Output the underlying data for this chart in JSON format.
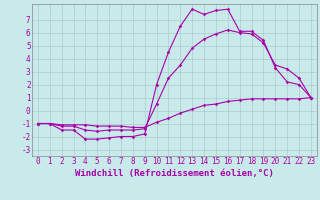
{
  "xlabel": "Windchill (Refroidissement éolien,°C)",
  "bg_color": "#c8eaea",
  "line_color": "#aa00aa",
  "grid_color": "#aacccc",
  "xlim": [
    -0.5,
    23.5
  ],
  "ylim": [
    -3.5,
    8.2
  ],
  "xticks": [
    0,
    1,
    2,
    3,
    4,
    5,
    6,
    7,
    8,
    9,
    10,
    11,
    12,
    13,
    14,
    15,
    16,
    17,
    18,
    19,
    20,
    21,
    22,
    23
  ],
  "yticks": [
    -3,
    -2,
    -1,
    0,
    1,
    2,
    3,
    4,
    5,
    6,
    7
  ],
  "line_top": [
    -1,
    -1.0,
    -1.5,
    -1.5,
    -2.2,
    -2.2,
    -2.1,
    -2.0,
    -2.0,
    -1.8,
    2.0,
    4.5,
    6.5,
    7.8,
    7.4,
    7.7,
    7.8,
    6.1,
    6.1,
    5.4,
    3.3,
    2.2,
    2.0,
    1.0
  ],
  "line_mid": [
    -1,
    -1.0,
    -1.2,
    -1.2,
    -1.5,
    -1.6,
    -1.5,
    -1.5,
    -1.5,
    -1.4,
    0.5,
    2.5,
    3.5,
    4.8,
    5.5,
    5.9,
    6.2,
    6.0,
    5.9,
    5.2,
    3.5,
    3.2,
    2.5,
    1.0
  ],
  "line_bot": [
    -1,
    -1.0,
    -1.1,
    -1.1,
    -1.1,
    -1.2,
    -1.2,
    -1.2,
    -1.3,
    -1.3,
    -0.9,
    -0.6,
    -0.2,
    0.1,
    0.4,
    0.5,
    0.7,
    0.8,
    0.9,
    0.9,
    0.9,
    0.9,
    0.9,
    1.0
  ],
  "xlabel_fontsize": 6.5,
  "tick_fontsize": 5.5,
  "marker_size": 1.8,
  "linewidth": 0.8
}
